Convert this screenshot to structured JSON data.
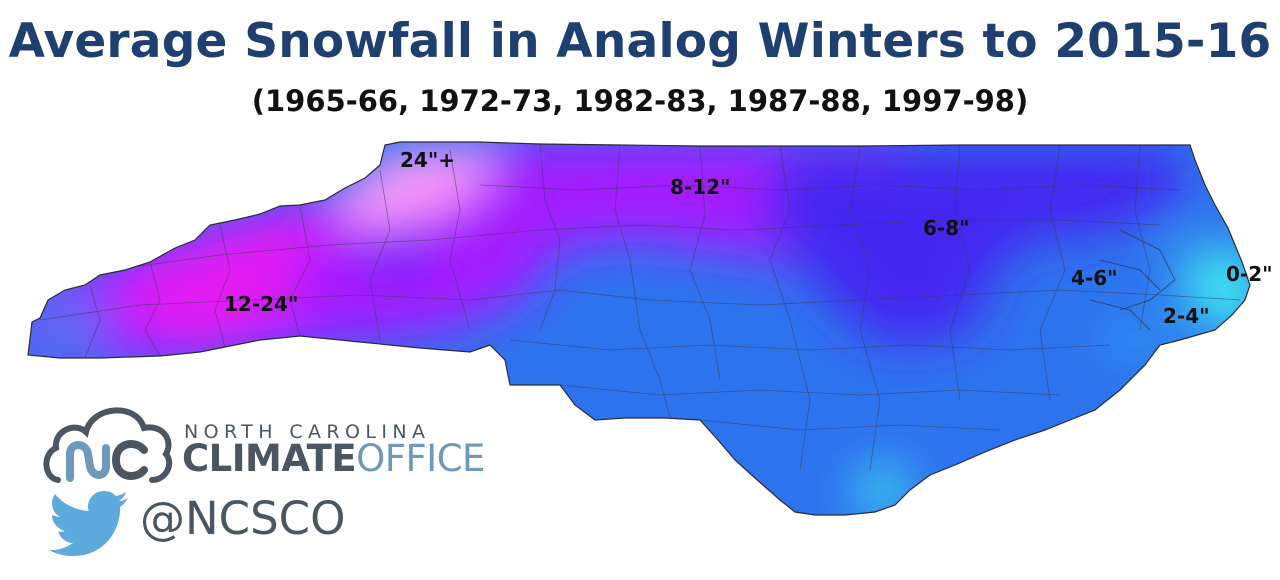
{
  "header": {
    "title": "Average Snowfall in Analog Winters to 2015-16",
    "subtitle": "(1965-66, 1972-73, 1982-83, 1987-88, 1997-98)"
  },
  "map": {
    "region": "North Carolina",
    "zones": [
      {
        "label": "24\"+",
        "color": "#ff9bf7"
      },
      {
        "label": "12-24\"",
        "color": "#e21cf2"
      },
      {
        "label": "8-12\"",
        "color": "#a31bff"
      },
      {
        "label": "6-8\"",
        "color": "#4425f0"
      },
      {
        "label": "4-6\"",
        "color": "#2e73ee"
      },
      {
        "label": "2-4\"",
        "color": "#2e8ff0"
      },
      {
        "label": "0-2\"",
        "color": "#3fe8ee"
      }
    ]
  },
  "branding": {
    "org_line1": "NORTH CAROLINA",
    "org_line2_strong": "CLIMATE",
    "org_line2_light": "OFFICE",
    "logo_icon": "nc-cloud-logo-icon",
    "social_icon": "twitter-bird-icon",
    "handle": "@NCSCO",
    "colors": {
      "title": "#1e3f70",
      "logo_gray": "#4a5762",
      "logo_blue": "#6f99bb",
      "twitter_blue": "#5ea9dd"
    }
  }
}
